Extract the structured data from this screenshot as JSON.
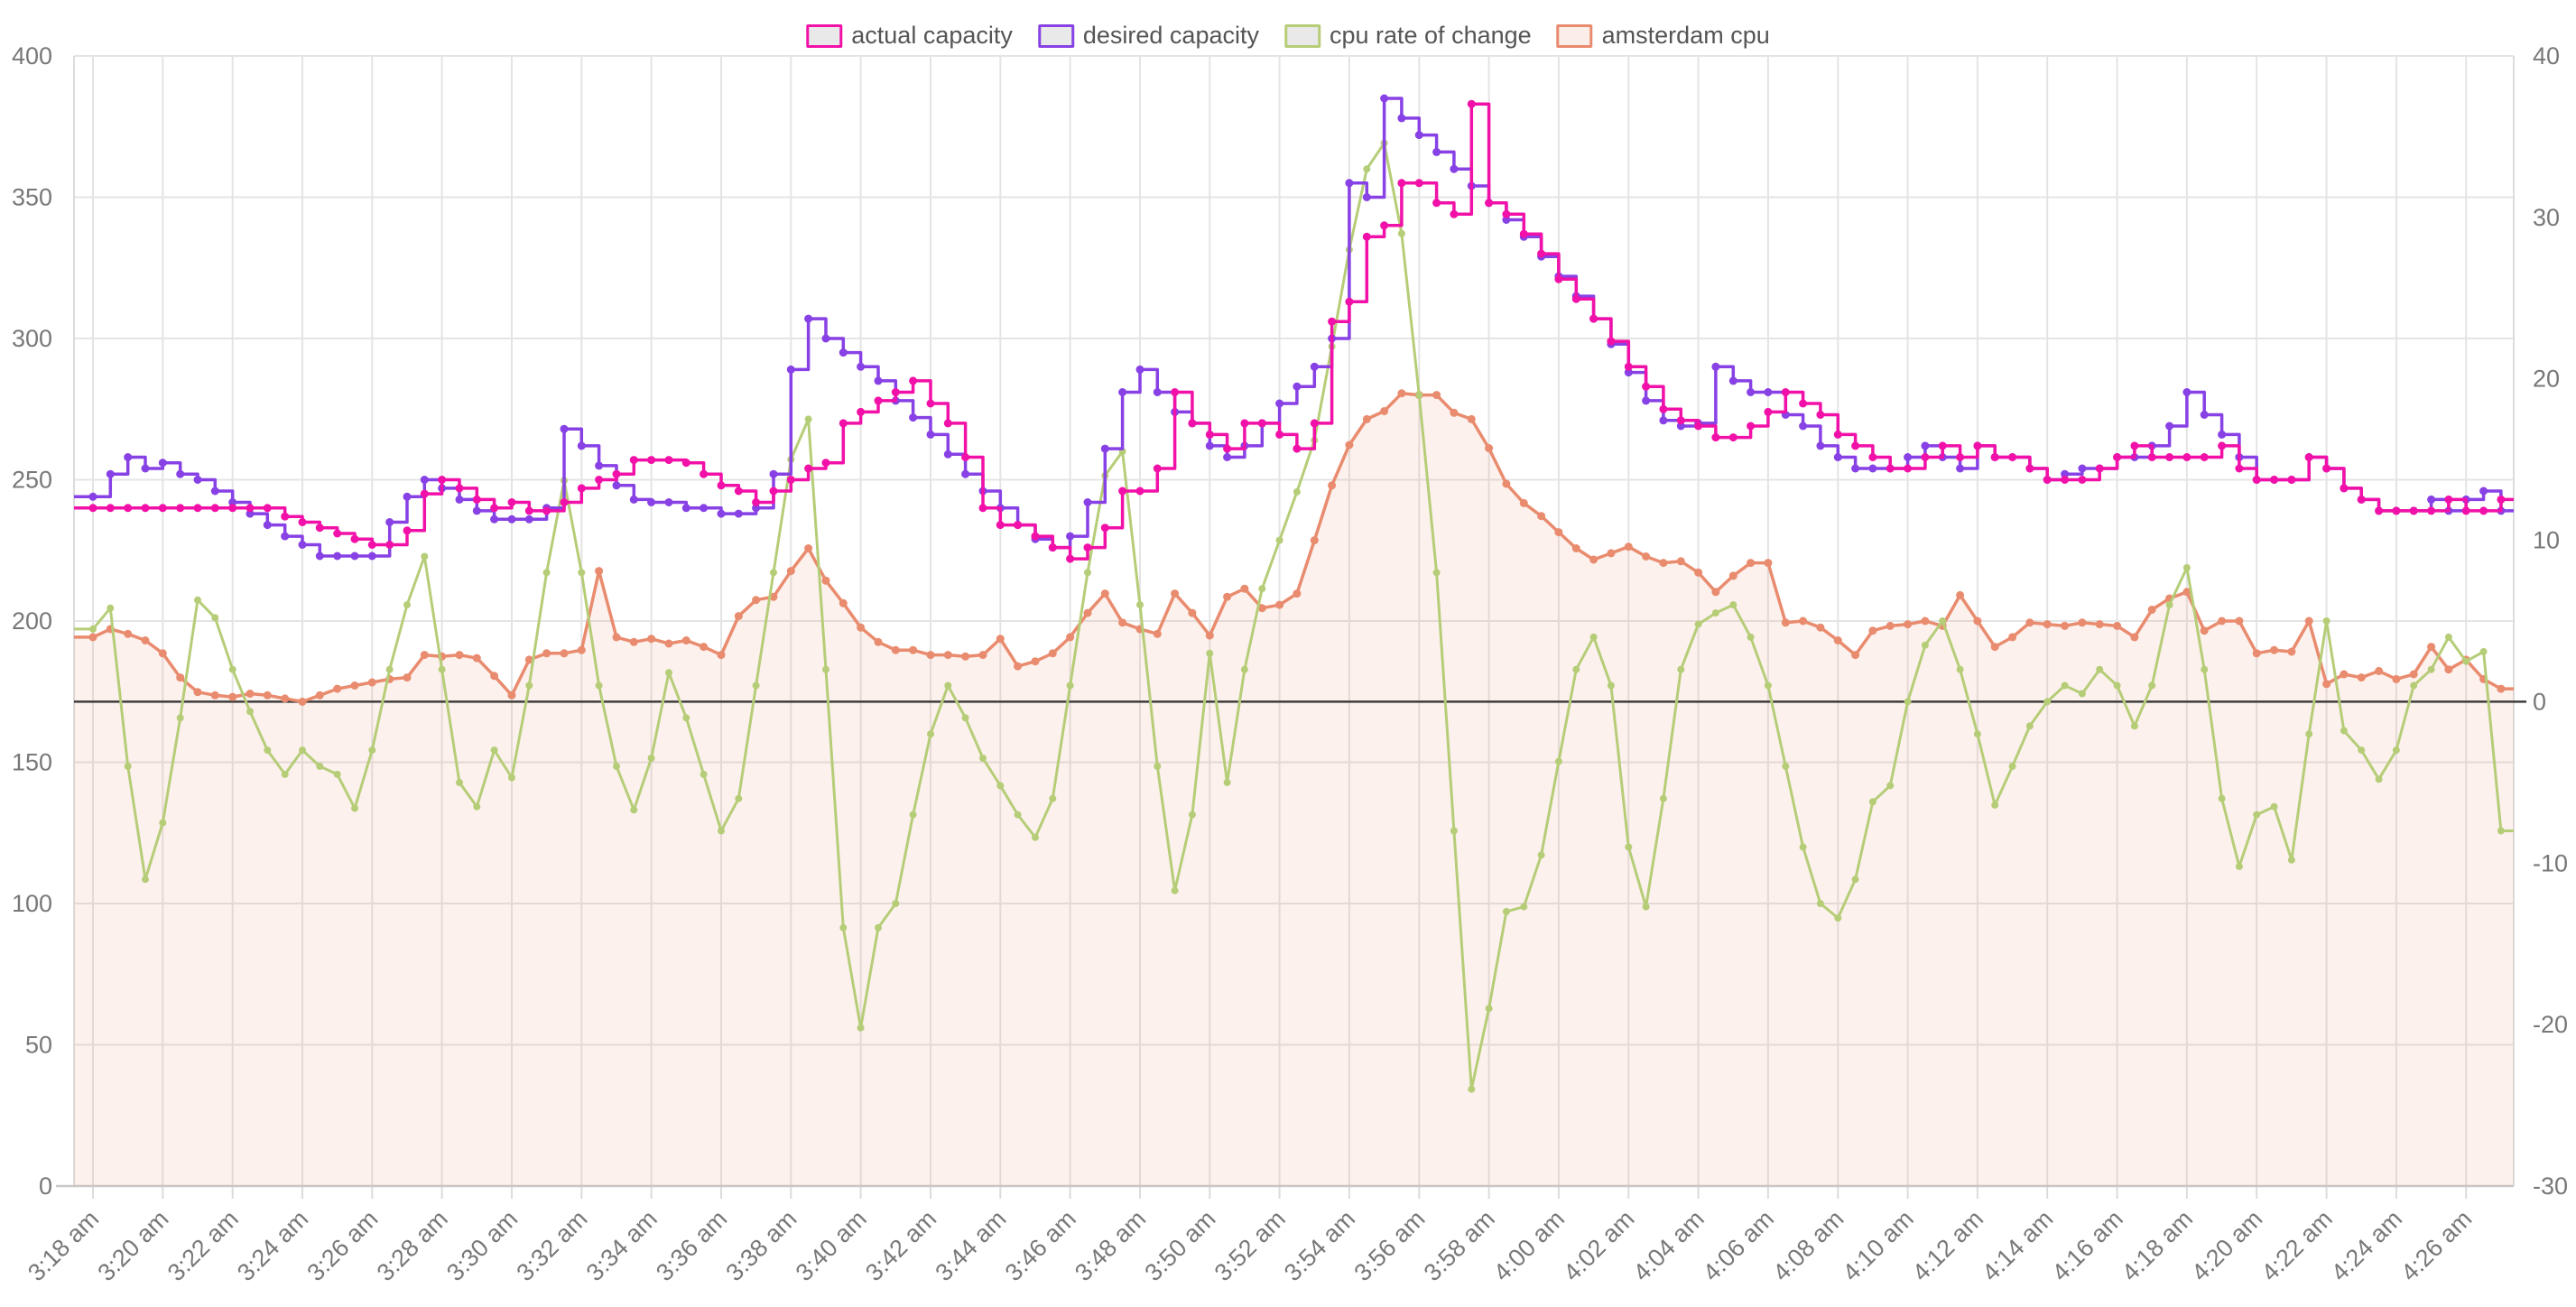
{
  "legend": {
    "items": [
      "actual capacity",
      "desired capacity",
      "cpu rate of change",
      "amsterdam cpu"
    ]
  },
  "colors": {
    "actual_capacity": "#f211a8",
    "desired_capacity": "#8741e5",
    "cpu_rate_of_change": "#b6cd78",
    "amsterdam_cpu": "#e98b6e",
    "amsterdam_cpu_fill": "rgba(233,139,110,0.12)",
    "gridline": "#e4e4e4",
    "plot_border": "#dcdcdc",
    "bottom_axis": "#c9c9c9",
    "zero_line": "#3d3d3d",
    "tick_text": "#787878",
    "legend_text": "#555555",
    "legend_swatch_bg": "#e9e9e9",
    "legend_swatch_bg_area": "#fbeee8",
    "background": "#ffffff"
  },
  "chart_data": {
    "type": "line",
    "title": "",
    "x_start_label": "3:18 am",
    "x_interval_seconds": 30,
    "x_tick_labels": [
      "3:18 am",
      "3:20 am",
      "3:22 am",
      "3:24 am",
      "3:26 am",
      "3:28 am",
      "3:30 am",
      "3:32 am",
      "3:34 am",
      "3:36 am",
      "3:38 am",
      "3:40 am",
      "3:42 am",
      "3:44 am",
      "3:46 am",
      "3:48 am",
      "3:50 am",
      "3:52 am",
      "3:54 am",
      "3:56 am",
      "3:58 am",
      "4:00 am",
      "4:02 am",
      "4:04 am",
      "4:06 am",
      "4:08 am",
      "4:10 am",
      "4:12 am",
      "4:14 am",
      "4:16 am",
      "4:18 am",
      "4:20 am",
      "4:22 am",
      "4:24 am",
      "4:26 am"
    ],
    "left_axis": {
      "min": 0,
      "max": 400,
      "tick_step": 50,
      "tick_labels": [
        "0",
        "50",
        "100",
        "150",
        "200",
        "250",
        "300",
        "350",
        "400"
      ]
    },
    "right_axis": {
      "min": -30,
      "max": 40,
      "tick_step": 10,
      "tick_labels": [
        "-30",
        "-20",
        "-10",
        "0",
        "10",
        "20",
        "30",
        "40"
      ]
    },
    "zero_line": {
      "axis": "right",
      "value": 0
    },
    "grid": true,
    "legend_position": "top-center",
    "series": [
      {
        "name": "actual capacity",
        "axis": "left",
        "render": "step",
        "color": "#f211a8",
        "values": [
          240,
          240,
          240,
          240,
          240,
          240,
          240,
          240,
          240,
          240,
          240,
          237,
          235,
          233,
          231,
          229,
          227,
          227,
          232,
          245,
          250,
          247,
          243,
          240,
          242,
          239,
          239,
          242,
          247,
          250,
          252,
          257,
          257,
          257,
          256,
          252,
          248,
          246,
          242,
          246,
          250,
          254,
          256,
          270,
          274,
          278,
          281,
          285,
          277,
          270,
          258,
          240,
          234,
          234,
          230,
          226,
          222,
          226,
          233,
          246,
          246,
          254,
          281,
          270,
          266,
          261,
          270,
          270,
          266,
          261,
          270,
          306,
          313,
          336,
          340,
          355,
          355,
          348,
          344,
          383,
          348,
          344,
          337,
          330,
          321,
          314,
          307,
          299,
          290,
          283,
          275,
          271,
          269,
          265,
          265,
          269,
          274,
          281,
          277,
          273,
          266,
          262,
          258,
          254,
          254,
          258,
          262,
          258,
          262,
          258,
          258,
          254,
          250,
          250,
          250,
          254,
          258,
          262,
          258,
          258,
          258,
          258,
          262,
          254,
          250,
          250,
          250,
          258,
          254,
          247,
          243,
          239,
          239,
          239,
          239,
          243,
          239,
          239,
          243
        ]
      },
      {
        "name": "desired capacity",
        "axis": "left",
        "render": "step",
        "color": "#8741e5",
        "values": [
          244,
          252,
          258,
          254,
          256,
          252,
          250,
          246,
          242,
          238,
          234,
          230,
          227,
          223,
          223,
          223,
          223,
          235,
          244,
          250,
          247,
          243,
          239,
          236,
          236,
          236,
          240,
          268,
          262,
          255,
          248,
          243,
          242,
          242,
          240,
          240,
          238,
          238,
          240,
          252,
          289,
          307,
          300,
          295,
          290,
          285,
          278,
          272,
          266,
          259,
          252,
          246,
          240,
          234,
          229,
          226,
          230,
          242,
          261,
          281,
          289,
          281,
          274,
          270,
          262,
          258,
          262,
          270,
          277,
          283,
          290,
          300,
          355,
          350,
          385,
          378,
          372,
          366,
          360,
          354,
          348,
          342,
          336,
          329,
          322,
          315,
          307,
          298,
          288,
          278,
          271,
          269,
          270,
          290,
          285,
          281,
          281,
          273,
          269,
          262,
          258,
          254,
          254,
          254,
          258,
          262,
          258,
          254,
          262,
          258,
          258,
          254,
          250,
          252,
          254,
          254,
          258,
          258,
          262,
          269,
          281,
          273,
          266,
          258,
          250,
          250,
          250,
          258,
          254,
          247,
          243,
          239,
          239,
          239,
          243,
          239,
          243,
          246,
          239
        ]
      },
      {
        "name": "cpu rate of change",
        "axis": "right",
        "render": "line",
        "color": "#b6cd78",
        "values": [
          4.5,
          5.8,
          -4,
          -11,
          -7.5,
          -1,
          6.3,
          5.2,
          2,
          -0.6,
          -3,
          -4.5,
          -3,
          -4,
          -4.5,
          -6.6,
          -3,
          2,
          6,
          9,
          2,
          -5,
          -6.5,
          -3,
          -4.7,
          1,
          8,
          13.7,
          8,
          1,
          -4,
          -6.7,
          -3.5,
          1.8,
          -1,
          -4.5,
          -8,
          -6,
          1,
          8,
          15,
          17.5,
          2,
          -14,
          -20.2,
          -14,
          -12.5,
          -7,
          -2,
          1,
          -1,
          -3.5,
          -5.2,
          -7,
          -8.4,
          -6,
          1,
          8,
          14,
          15.5,
          6,
          -4,
          -11.7,
          -7,
          3,
          -5,
          2,
          7,
          10,
          13,
          16.2,
          22,
          28,
          33,
          34.6,
          29,
          19,
          8,
          -8,
          -24,
          -19,
          -13,
          -12.7,
          -9.5,
          -3.7,
          2,
          4,
          1,
          -9,
          -12.7,
          -6,
          2,
          4.8,
          5.5,
          6,
          4,
          1,
          -4,
          -9,
          -12.5,
          -13.4,
          -11,
          -6.2,
          -5.2,
          0,
          3.5,
          5,
          2,
          -2,
          -6.4,
          -4,
          -1.5,
          0,
          1,
          0.5,
          2,
          1,
          -1.5,
          1,
          6,
          8.3,
          2,
          -6,
          -10.2,
          -7,
          -6.5,
          -9.8,
          -2,
          5,
          -1.8,
          -3,
          -4.8,
          -3,
          1,
          2,
          4,
          2.5,
          3.1,
          -8
        ]
      },
      {
        "name": "amsterdam cpu",
        "axis": "right",
        "render": "area",
        "color": "#e98b6e",
        "fill": "rgba(233,139,110,0.12)",
        "values": [
          4,
          4.5,
          4.2,
          3.8,
          3,
          1.5,
          0.6,
          0.4,
          0.3,
          0.5,
          0.4,
          0.2,
          0,
          0.4,
          0.8,
          1,
          1.2,
          1.4,
          1.5,
          2.9,
          2.8,
          2.9,
          2.7,
          1.6,
          0.4,
          2.6,
          3,
          3,
          3.2,
          8.1,
          4,
          3.7,
          3.9,
          3.6,
          3.8,
          3.4,
          2.9,
          5.3,
          6.3,
          6.5,
          8.1,
          9.5,
          7.5,
          6.1,
          4.6,
          3.7,
          3.2,
          3.2,
          2.9,
          2.9,
          2.8,
          2.9,
          3.9,
          2.2,
          2.5,
          3,
          4,
          5.5,
          6.7,
          4.9,
          4.5,
          4.2,
          6.7,
          5.5,
          4.1,
          6.5,
          7,
          5.8,
          6,
          6.7,
          10,
          13.4,
          15.9,
          17.5,
          18,
          19.1,
          19,
          19,
          17.9,
          17.5,
          15.7,
          13.5,
          12.3,
          11.5,
          10.5,
          9.5,
          8.8,
          9.2,
          9.6,
          9,
          8.6,
          8.7,
          8,
          6.8,
          7.8,
          8.6,
          8.6,
          4.9,
          5,
          4.6,
          3.8,
          2.9,
          4.4,
          4.7,
          4.8,
          5,
          4.7,
          6.6,
          5,
          3.4,
          4,
          4.9,
          4.8,
          4.7,
          4.9,
          4.8,
          4.7,
          4,
          5.7,
          6.4,
          6.8,
          4.4,
          5,
          5,
          3,
          3.2,
          3.1,
          5,
          1.1,
          1.7,
          1.5,
          1.9,
          1.4,
          1.7,
          3.4,
          2,
          2.6,
          1.4,
          0.8
        ]
      }
    ]
  }
}
